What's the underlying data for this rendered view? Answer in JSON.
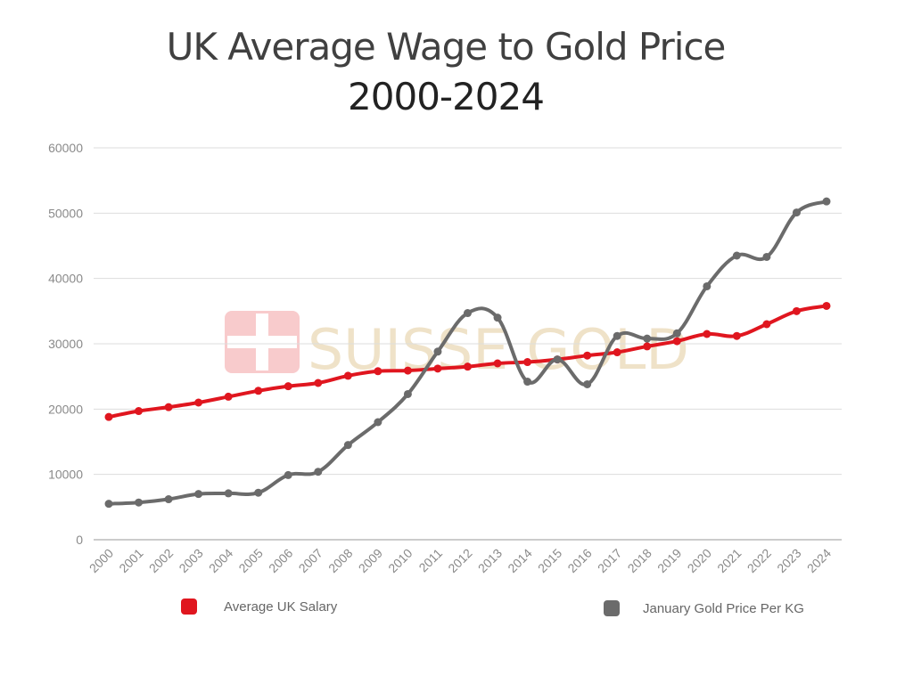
{
  "title_line1": "UK Average Wage to Gold Price",
  "title_line2": "2000-2024",
  "watermark": "SUISSE GOLD",
  "colors": {
    "salary": "#e0161f",
    "gold": "#6b6b6b",
    "grid": "#dddddd",
    "axis": "#999999",
    "tick_text": "#8a8a8a"
  },
  "chart_data": {
    "type": "line",
    "title": "UK Average Wage to Gold Price 2000-2024",
    "xlabel": "",
    "ylabel": "",
    "ylim": [
      0,
      60000
    ],
    "yticks": [
      0,
      10000,
      20000,
      30000,
      40000,
      50000,
      60000
    ],
    "grid": true,
    "legend_position": "bottom",
    "categories": [
      "2000",
      "2001",
      "2002",
      "2003",
      "2004",
      "2005",
      "2006",
      "2007",
      "2008",
      "2009",
      "2010",
      "2011",
      "2012",
      "2013",
      "2014",
      "2015",
      "2016",
      "2017",
      "2018",
      "2019",
      "2020",
      "2021",
      "2022",
      "2023",
      "2024"
    ],
    "series": [
      {
        "name": "Average UK Salary",
        "color": "#e0161f",
        "values": [
          18800,
          19700,
          20300,
          21000,
          21900,
          22800,
          23500,
          24000,
          25100,
          25800,
          25900,
          26200,
          26500,
          27000,
          27200,
          27600,
          28200,
          28700,
          29600,
          30400,
          31500,
          31200,
          33000,
          35000,
          35800
        ]
      },
      {
        "name": "January Gold Price Per KG",
        "color": "#6b6b6b",
        "values": [
          5500,
          5700,
          6200,
          7000,
          7100,
          7200,
          9900,
          10400,
          14500,
          18000,
          22300,
          28800,
          34700,
          34000,
          24200,
          27600,
          23800,
          31200,
          30800,
          31600,
          38800,
          43500,
          43300,
          50100,
          51800
        ]
      }
    ]
  }
}
